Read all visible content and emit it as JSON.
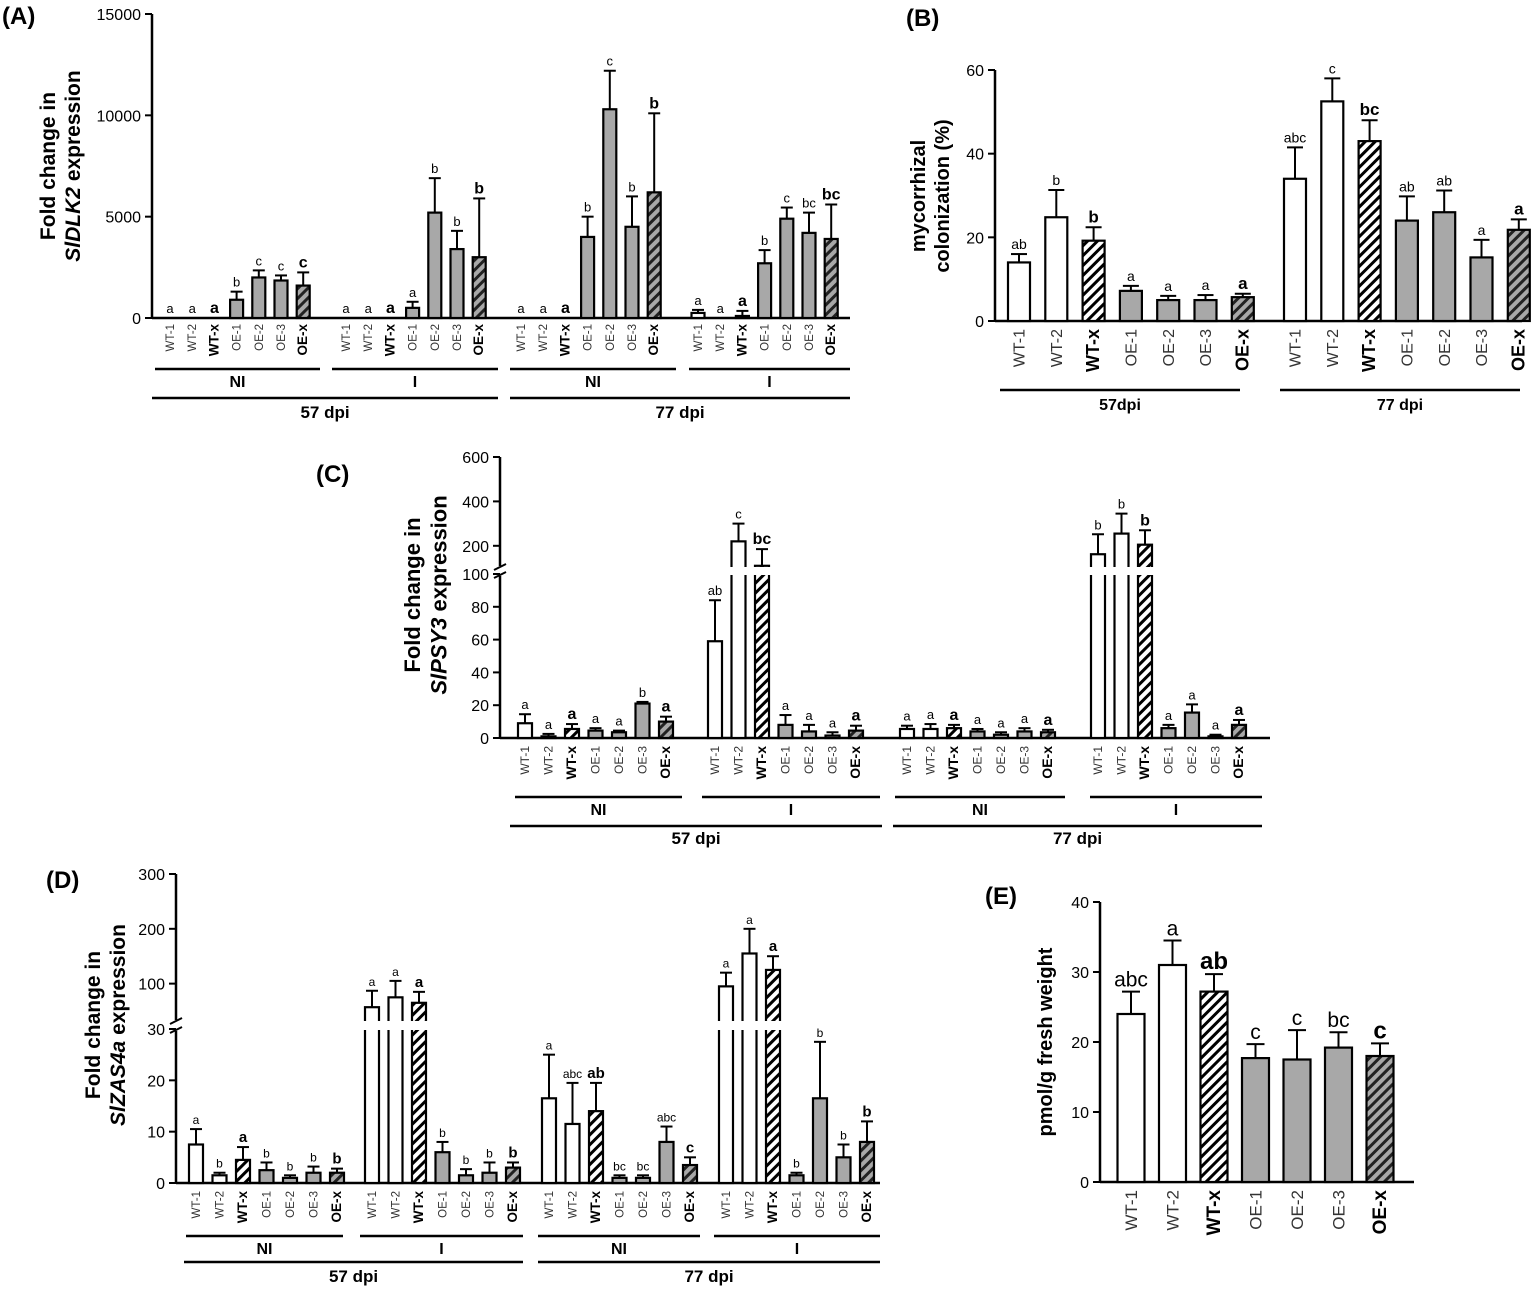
{
  "figure": {
    "group_labels": {
      "ni": "NI",
      "i": "I",
      "dpi57": "57 dpi",
      "dpi77": "77 dpi",
      "dpi57b": "57dpi"
    }
  },
  "chart_data": [
    {
      "id": "A",
      "type": "bar",
      "panel_label": "(A)",
      "ylabel_1": "Fold change in",
      "ylabel_gene": "SlDLK2",
      "ylabel_2": " expression",
      "ylim": [
        0,
        15000
      ],
      "yticks": [
        0,
        5000,
        10000,
        15000
      ],
      "groups": [
        {
          "dpi": "57 dpi",
          "treatment": "NI",
          "bars": [
            {
              "label": "WT-1",
              "value": 0,
              "err": 0,
              "letter": "a"
            },
            {
              "label": "WT-2",
              "value": 0,
              "err": 0,
              "letter": "a"
            },
            {
              "label": "WT-x",
              "value": 0,
              "err": 0,
              "letter": "a"
            },
            {
              "label": "OE-1",
              "value": 900,
              "err": 400,
              "letter": "b"
            },
            {
              "label": "OE-2",
              "value": 2000,
              "err": 350,
              "letter": "c"
            },
            {
              "label": "OE-3",
              "value": 1850,
              "err": 250,
              "letter": "c"
            },
            {
              "label": "OE-x",
              "value": 1600,
              "err": 650,
              "letter": "c"
            }
          ]
        },
        {
          "dpi": "57 dpi",
          "treatment": "I",
          "bars": [
            {
              "label": "WT-1",
              "value": 0,
              "err": 0,
              "letter": "a"
            },
            {
              "label": "WT-2",
              "value": 0,
              "err": 0,
              "letter": "a"
            },
            {
              "label": "WT-x",
              "value": 0,
              "err": 0,
              "letter": "a"
            },
            {
              "label": "OE-1",
              "value": 500,
              "err": 300,
              "letter": "a"
            },
            {
              "label": "OE-2",
              "value": 5200,
              "err": 1700,
              "letter": "b"
            },
            {
              "label": "OE-3",
              "value": 3400,
              "err": 900,
              "letter": "b"
            },
            {
              "label": "OE-x",
              "value": 3000,
              "err": 2900,
              "letter": "b"
            }
          ]
        },
        {
          "dpi": "77 dpi",
          "treatment": "NI",
          "bars": [
            {
              "label": "WT-1",
              "value": 0,
              "err": 0,
              "letter": "a"
            },
            {
              "label": "WT-2",
              "value": 0,
              "err": 0,
              "letter": "a"
            },
            {
              "label": "WT-x",
              "value": 0,
              "err": 0,
              "letter": "a"
            },
            {
              "label": "OE-1",
              "value": 4000,
              "err": 1000,
              "letter": "b"
            },
            {
              "label": "OE-2",
              "value": 10300,
              "err": 1900,
              "letter": "c"
            },
            {
              "label": "OE-3",
              "value": 4500,
              "err": 1500,
              "letter": "b"
            },
            {
              "label": "OE-x",
              "value": 6200,
              "err": 3900,
              "letter": "b"
            }
          ]
        },
        {
          "dpi": "77 dpi",
          "treatment": "I",
          "bars": [
            {
              "label": "WT-1",
              "value": 250,
              "err": 150,
              "letter": "a"
            },
            {
              "label": "WT-2",
              "value": 0,
              "err": 0,
              "letter": "a"
            },
            {
              "label": "WT-x",
              "value": 100,
              "err": 250,
              "letter": "a"
            },
            {
              "label": "OE-1",
              "value": 2700,
              "err": 650,
              "letter": "b"
            },
            {
              "label": "OE-2",
              "value": 4900,
              "err": 550,
              "letter": "c"
            },
            {
              "label": "OE-3",
              "value": 4200,
              "err": 1000,
              "letter": "bc"
            },
            {
              "label": "OE-x",
              "value": 3900,
              "err": 1700,
              "letter": "bc"
            }
          ]
        }
      ]
    },
    {
      "id": "B",
      "type": "bar",
      "panel_label": "(B)",
      "ylabel_1": "mycorrhizal",
      "ylabel_2": "colonization (%)",
      "ylim": [
        0,
        60
      ],
      "yticks": [
        0,
        20,
        40,
        60
      ],
      "groups": [
        {
          "dpi": "57dpi",
          "bars": [
            {
              "label": "WT-1",
              "value": 14,
              "err": 2,
              "letter": "ab"
            },
            {
              "label": "WT-2",
              "value": 24.8,
              "err": 6.5,
              "letter": "b"
            },
            {
              "label": "WT-x",
              "value": 19.2,
              "err": 3.2,
              "letter": "b"
            },
            {
              "label": "OE-1",
              "value": 7.2,
              "err": 1.2,
              "letter": "a"
            },
            {
              "label": "OE-2",
              "value": 5,
              "err": 1,
              "letter": "a"
            },
            {
              "label": "OE-3",
              "value": 5,
              "err": 1.2,
              "letter": "a"
            },
            {
              "label": "OE-x",
              "value": 5.7,
              "err": 0.8,
              "letter": "a"
            }
          ]
        },
        {
          "dpi": "77 dpi",
          "bars": [
            {
              "label": "WT-1",
              "value": 34,
              "err": 7.5,
              "letter": "abc"
            },
            {
              "label": "WT-2",
              "value": 52.5,
              "err": 5.5,
              "letter": "c"
            },
            {
              "label": "WT-x",
              "value": 43,
              "err": 5,
              "letter": "bc"
            },
            {
              "label": "OE-1",
              "value": 24,
              "err": 5.8,
              "letter": "ab"
            },
            {
              "label": "OE-2",
              "value": 26,
              "err": 5.2,
              "letter": "ab"
            },
            {
              "label": "OE-3",
              "value": 15.2,
              "err": 4.2,
              "letter": "a"
            },
            {
              "label": "OE-x",
              "value": 21.8,
              "err": 2.5,
              "letter": "a"
            }
          ]
        }
      ]
    },
    {
      "id": "C",
      "type": "bar",
      "panel_label": "(C)",
      "ylabel_1": "Fold change in",
      "ylabel_gene": "SlPSY3",
      "ylabel_2": " expression",
      "ylim_lower": [
        0,
        100
      ],
      "ylim_upper": [
        100,
        600
      ],
      "yticks": [
        0,
        20,
        40,
        60,
        80,
        100,
        200,
        400,
        600
      ],
      "groups": [
        {
          "dpi": "57 dpi",
          "treatment": "NI",
          "bars": [
            {
              "label": "WT-1",
              "value": 9,
              "err": 5.5,
              "letter": "a"
            },
            {
              "label": "WT-2",
              "value": 1,
              "err": 1.5,
              "letter": "a"
            },
            {
              "label": "WT-x",
              "value": 5.5,
              "err": 3,
              "letter": "a"
            },
            {
              "label": "OE-1",
              "value": 4.5,
              "err": 1.5,
              "letter": "a"
            },
            {
              "label": "OE-2",
              "value": 3.5,
              "err": 1,
              "letter": "a"
            },
            {
              "label": "OE-3",
              "value": 21,
              "err": 1,
              "letter": "b"
            },
            {
              "label": "OE-x",
              "value": 10,
              "err": 3,
              "letter": "a"
            }
          ]
        },
        {
          "dpi": "57 dpi",
          "treatment": "I",
          "bars": [
            {
              "label": "WT-1",
              "value": 59,
              "err": 25,
              "letter": "ab"
            },
            {
              "label": "WT-2",
              "value": 220,
              "err": 80,
              "letter": "c"
            },
            {
              "label": "WT-x",
              "value": 110,
              "err": 75,
              "letter": "bc"
            },
            {
              "label": "OE-1",
              "value": 8,
              "err": 6,
              "letter": "a"
            },
            {
              "label": "OE-2",
              "value": 4,
              "err": 4,
              "letter": "a"
            },
            {
              "label": "OE-3",
              "value": 1.5,
              "err": 2,
              "letter": "a"
            },
            {
              "label": "OE-x",
              "value": 4.5,
              "err": 3,
              "letter": "a"
            }
          ]
        },
        {
          "dpi": "77 dpi",
          "treatment": "NI",
          "bars": [
            {
              "label": "WT-1",
              "value": 5.5,
              "err": 2,
              "letter": "a"
            },
            {
              "label": "WT-2",
              "value": 5.5,
              "err": 3,
              "letter": "a"
            },
            {
              "label": "WT-x",
              "value": 6,
              "err": 2,
              "letter": "a"
            },
            {
              "label": "OE-1",
              "value": 4,
              "err": 1.5,
              "letter": "a"
            },
            {
              "label": "OE-2",
              "value": 2,
              "err": 1.5,
              "letter": "a"
            },
            {
              "label": "OE-3",
              "value": 4,
              "err": 2,
              "letter": "a"
            },
            {
              "label": "OE-x",
              "value": 3.5,
              "err": 1.5,
              "letter": "a"
            }
          ]
        },
        {
          "dpi": "77 dpi",
          "treatment": "I",
          "bars": [
            {
              "label": "WT-1",
              "value": 162,
              "err": 90,
              "letter": "b"
            },
            {
              "label": "WT-2",
              "value": 255,
              "err": 90,
              "letter": "b"
            },
            {
              "label": "WT-x",
              "value": 205,
              "err": 65,
              "letter": "b"
            },
            {
              "label": "OE-1",
              "value": 6,
              "err": 2,
              "letter": "a"
            },
            {
              "label": "OE-2",
              "value": 15.5,
              "err": 5,
              "letter": "a"
            },
            {
              "label": "OE-3",
              "value": 1,
              "err": 1,
              "letter": "a"
            },
            {
              "label": "OE-x",
              "value": 8,
              "err": 3,
              "letter": "a"
            }
          ]
        }
      ]
    },
    {
      "id": "D",
      "type": "bar",
      "panel_label": "(D)",
      "ylabel_1": "Fold change in",
      "ylabel_gene": "SlZAS4a",
      "ylabel_2": " expression",
      "ylim_lower": [
        0,
        30
      ],
      "ylim_upper": [
        30,
        300
      ],
      "yticks": [
        0,
        10,
        20,
        30,
        100,
        200,
        300
      ],
      "groups": [
        {
          "dpi": "57 dpi",
          "treatment": "NI",
          "bars": [
            {
              "label": "WT-1",
              "value": 7.5,
              "err": 3,
              "letter": "a"
            },
            {
              "label": "WT-2",
              "value": 1.5,
              "err": 0.5,
              "letter": "b"
            },
            {
              "label": "WT-x",
              "value": 4.5,
              "err": 2.5,
              "letter": "a"
            },
            {
              "label": "OE-1",
              "value": 2.5,
              "err": 1.5,
              "letter": "b"
            },
            {
              "label": "OE-2",
              "value": 1,
              "err": 0.5,
              "letter": "b"
            },
            {
              "label": "OE-3",
              "value": 2,
              "err": 1.2,
              "letter": "b"
            },
            {
              "label": "OE-x",
              "value": 2,
              "err": 0.8,
              "letter": "b"
            }
          ]
        },
        {
          "dpi": "57 dpi",
          "treatment": "I",
          "bars": [
            {
              "label": "WT-1",
              "value": 57,
              "err": 30,
              "letter": "a"
            },
            {
              "label": "WT-2",
              "value": 75,
              "err": 30,
              "letter": "a"
            },
            {
              "label": "WT-x",
              "value": 65,
              "err": 20,
              "letter": "a"
            },
            {
              "label": "OE-1",
              "value": 6,
              "err": 2,
              "letter": "b"
            },
            {
              "label": "OE-2",
              "value": 1.5,
              "err": 1.2,
              "letter": "b"
            },
            {
              "label": "OE-3",
              "value": 2,
              "err": 2,
              "letter": "b"
            },
            {
              "label": "OE-x",
              "value": 3,
              "err": 1,
              "letter": "b"
            }
          ]
        },
        {
          "dpi": "77 dpi",
          "treatment": "NI",
          "bars": [
            {
              "label": "WT-1",
              "value": 16.5,
              "err": 8.5,
              "letter": "a"
            },
            {
              "label": "WT-2",
              "value": 11.5,
              "err": 8,
              "letter": "abc"
            },
            {
              "label": "WT-x",
              "value": 14,
              "err": 5.5,
              "letter": "ab"
            },
            {
              "label": "OE-1",
              "value": 1,
              "err": 0.5,
              "letter": "bc"
            },
            {
              "label": "OE-2",
              "value": 1,
              "err": 0.5,
              "letter": "bc"
            },
            {
              "label": "OE-3",
              "value": 8,
              "err": 3,
              "letter": "abc"
            },
            {
              "label": "OE-x",
              "value": 3.5,
              "err": 1.5,
              "letter": "c"
            }
          ]
        },
        {
          "dpi": "77 dpi",
          "treatment": "I",
          "bars": [
            {
              "label": "WT-1",
              "value": 95,
              "err": 25,
              "letter": "a"
            },
            {
              "label": "WT-2",
              "value": 155,
              "err": 45,
              "letter": "a"
            },
            {
              "label": "WT-x",
              "value": 125,
              "err": 25,
              "letter": "a"
            },
            {
              "label": "OE-1",
              "value": 1.5,
              "err": 0.5,
              "letter": "b"
            },
            {
              "label": "OE-2",
              "value": 16.5,
              "err": 11,
              "letter": "b"
            },
            {
              "label": "OE-3",
              "value": 5,
              "err": 2.5,
              "letter": "b"
            },
            {
              "label": "OE-x",
              "value": 8,
              "err": 4,
              "letter": "b"
            }
          ]
        }
      ]
    },
    {
      "id": "E",
      "type": "bar",
      "panel_label": "(E)",
      "ylabel_1": "pmol/g fresh weight",
      "ylim": [
        0,
        40
      ],
      "yticks": [
        0,
        10,
        20,
        30,
        40
      ],
      "groups": [
        {
          "bars": [
            {
              "label": "WT-1",
              "value": 24,
              "err": 3.2,
              "letter": "abc"
            },
            {
              "label": "WT-2",
              "value": 31,
              "err": 3.5,
              "letter": "a"
            },
            {
              "label": "WT-x",
              "value": 27.2,
              "err": 2.5,
              "letter": "ab"
            },
            {
              "label": "OE-1",
              "value": 17.7,
              "err": 2,
              "letter": "c"
            },
            {
              "label": "OE-2",
              "value": 17.5,
              "err": 4.2,
              "letter": "c"
            },
            {
              "label": "OE-3",
              "value": 19.2,
              "err": 2.2,
              "letter": "bc"
            },
            {
              "label": "OE-x",
              "value": 18,
              "err": 1.8,
              "letter": "c"
            }
          ]
        }
      ]
    }
  ]
}
